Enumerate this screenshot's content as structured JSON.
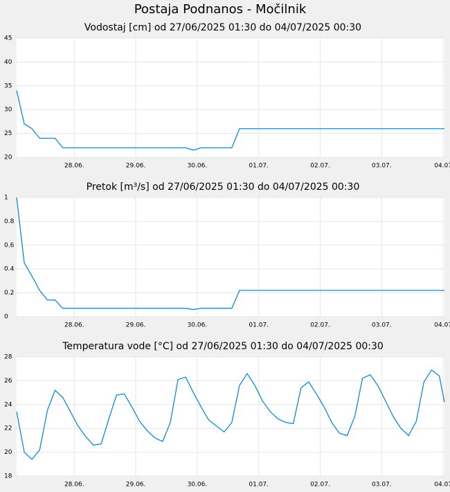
{
  "title": "Postaja Podnanos - Močilnik",
  "chart_data": [
    {
      "type": "line",
      "title": "Vodostaj [cm] od 27/06/2025 01:30 do 04/07/2025 00:30",
      "x": [
        "27.06. 01:30",
        "27.06. 04:30",
        "27.06. 07:30",
        "27.06. 10:30",
        "27.06. 13:30",
        "27.06. 16:30",
        "27.06. 19:30",
        "27.06. 22:30",
        "28.06. 01:30",
        "28.06. 04:30",
        "28.06. 07:30",
        "28.06. 10:30",
        "28.06. 13:30",
        "28.06. 16:30",
        "28.06. 19:30",
        "28.06. 22:30",
        "29.06. 01:30",
        "29.06. 04:30",
        "29.06. 07:30",
        "29.06. 10:30",
        "29.06. 13:30",
        "29.06. 16:30",
        "29.06. 19:30",
        "29.06. 22:30",
        "30.06. 01:30",
        "30.06. 04:30",
        "30.06. 07:30",
        "30.06. 10:30",
        "30.06. 13:30",
        "30.06. 16:30",
        "30.06. 19:30",
        "30.06. 22:30",
        "01.07. 01:30",
        "01.07. 04:30",
        "01.07. 07:30",
        "01.07. 10:30",
        "01.07. 13:30",
        "01.07. 16:30",
        "01.07. 19:30",
        "01.07. 22:30",
        "02.07. 01:30",
        "02.07. 04:30",
        "02.07. 07:30",
        "02.07. 10:30",
        "02.07. 13:30",
        "02.07. 16:30",
        "02.07. 19:30",
        "02.07. 22:30",
        "03.07. 01:30",
        "03.07. 04:30",
        "03.07. 07:30",
        "03.07. 10:30",
        "03.07. 13:30",
        "03.07. 16:30",
        "03.07. 19:30",
        "03.07. 22:30",
        "04.07. 00:30"
      ],
      "series": [
        {
          "color": "#0a8ad6",
          "values": [
            34,
            27,
            26,
            24,
            24,
            24,
            22,
            22,
            22,
            22,
            22,
            22,
            22,
            22,
            22,
            22,
            22,
            22,
            22,
            22,
            22,
            22,
            22,
            21.5,
            22,
            22,
            22,
            22,
            22,
            26,
            26,
            26,
            26,
            26,
            26,
            26,
            26,
            26,
            26,
            26,
            26,
            26,
            26,
            26,
            26,
            26,
            26,
            26,
            26,
            26,
            26,
            26,
            26,
            26,
            26,
            26,
            26
          ]
        }
      ],
      "xlim": [
        "27.06. 01:30",
        "04.07. 00:30"
      ],
      "xticks": [
        {
          "value": "28.06. 00:00",
          "label": "28.06."
        },
        {
          "value": "29.06. 00:00",
          "label": "29.06."
        },
        {
          "value": "30.06. 00:00",
          "label": "30.06."
        },
        {
          "value": "01.07. 00:00",
          "label": "01.07."
        },
        {
          "value": "02.07. 00:00",
          "label": "02.07."
        },
        {
          "value": "03.07. 00:00",
          "label": "03.07."
        },
        {
          "value": "04.07. 00:00",
          "label": "04.07"
        }
      ],
      "ylim": [
        20,
        45
      ],
      "yticks": [
        20,
        25,
        30,
        35,
        40,
        45
      ],
      "grid": true
    },
    {
      "type": "line",
      "title": "Pretok [m³/s] od 27/06/2025 01:30 do 04/07/2025 00:30",
      "x": [
        "27.06. 01:30",
        "27.06. 04:30",
        "27.06. 07:30",
        "27.06. 10:30",
        "27.06. 13:30",
        "27.06. 16:30",
        "27.06. 19:30",
        "27.06. 22:30",
        "28.06. 01:30",
        "28.06. 04:30",
        "28.06. 07:30",
        "28.06. 10:30",
        "28.06. 13:30",
        "28.06. 16:30",
        "28.06. 19:30",
        "28.06. 22:30",
        "29.06. 01:30",
        "29.06. 04:30",
        "29.06. 07:30",
        "29.06. 10:30",
        "29.06. 13:30",
        "29.06. 16:30",
        "29.06. 19:30",
        "29.06. 22:30",
        "30.06. 01:30",
        "30.06. 04:30",
        "30.06. 07:30",
        "30.06. 10:30",
        "30.06. 13:30",
        "30.06. 16:30",
        "30.06. 19:30",
        "30.06. 22:30",
        "01.07. 01:30",
        "01.07. 04:30",
        "01.07. 07:30",
        "01.07. 10:30",
        "01.07. 13:30",
        "01.07. 16:30",
        "01.07. 19:30",
        "01.07. 22:30",
        "02.07. 01:30",
        "02.07. 04:30",
        "02.07. 07:30",
        "02.07. 10:30",
        "02.07. 13:30",
        "02.07. 16:30",
        "02.07. 19:30",
        "02.07. 22:30",
        "03.07. 01:30",
        "03.07. 04:30",
        "03.07. 07:30",
        "03.07. 10:30",
        "03.07. 13:30",
        "03.07. 16:30",
        "03.07. 19:30",
        "03.07. 22:30",
        "04.07. 00:30"
      ],
      "series": [
        {
          "color": "#0a8ad6",
          "values": [
            1,
            0.45,
            0.34,
            0.22,
            0.14,
            0.14,
            0.07,
            0.07,
            0.07,
            0.07,
            0.07,
            0.07,
            0.07,
            0.07,
            0.07,
            0.07,
            0.07,
            0.07,
            0.07,
            0.07,
            0.07,
            0.07,
            0.07,
            0.06,
            0.07,
            0.07,
            0.07,
            0.07,
            0.07,
            0.22,
            0.22,
            0.22,
            0.22,
            0.22,
            0.22,
            0.22,
            0.22,
            0.22,
            0.22,
            0.22,
            0.22,
            0.22,
            0.22,
            0.22,
            0.22,
            0.22,
            0.22,
            0.22,
            0.22,
            0.22,
            0.22,
            0.22,
            0.22,
            0.22,
            0.22,
            0.22,
            0.22
          ]
        }
      ],
      "xlim": [
        "27.06. 01:30",
        "04.07. 00:30"
      ],
      "xticks": [
        {
          "value": "28.06. 00:00",
          "label": "28.06."
        },
        {
          "value": "29.06. 00:00",
          "label": "29.06."
        },
        {
          "value": "30.06. 00:00",
          "label": "30.06."
        },
        {
          "value": "01.07. 00:00",
          "label": "01.07."
        },
        {
          "value": "02.07. 00:00",
          "label": "02.07."
        },
        {
          "value": "03.07. 00:00",
          "label": "03.07."
        },
        {
          "value": "04.07. 00:00",
          "label": "04.07"
        }
      ],
      "ylim": [
        0,
        1
      ],
      "yticks": [
        0,
        0.2,
        0.4,
        0.6,
        0.8,
        1
      ],
      "grid": true
    },
    {
      "type": "line",
      "title": "Temperatura vode [°C] od 27/06/2025 01:30 do 04/07/2025 00:30",
      "x": [
        "27.06. 01:30",
        "27.06. 04:30",
        "27.06. 07:30",
        "27.06. 10:30",
        "27.06. 13:30",
        "27.06. 16:30",
        "27.06. 19:30",
        "27.06. 22:30",
        "28.06. 01:30",
        "28.06. 04:30",
        "28.06. 07:30",
        "28.06. 10:30",
        "28.06. 13:30",
        "28.06. 16:30",
        "28.06. 19:30",
        "28.06. 22:30",
        "29.06. 01:30",
        "29.06. 04:30",
        "29.06. 07:30",
        "29.06. 10:30",
        "29.06. 13:30",
        "29.06. 16:30",
        "29.06. 19:30",
        "29.06. 22:30",
        "30.06. 01:30",
        "30.06. 04:30",
        "30.06. 07:30",
        "30.06. 10:30",
        "30.06. 13:30",
        "30.06. 16:30",
        "30.06. 19:30",
        "30.06. 22:30",
        "01.07. 01:30",
        "01.07. 04:30",
        "01.07. 07:30",
        "01.07. 10:30",
        "01.07. 13:30",
        "01.07. 16:30",
        "01.07. 19:30",
        "01.07. 22:30",
        "02.07. 01:30",
        "02.07. 04:30",
        "02.07. 07:30",
        "02.07. 10:30",
        "02.07. 13:30",
        "02.07. 16:30",
        "02.07. 19:30",
        "02.07. 22:30",
        "03.07. 01:30",
        "03.07. 04:30",
        "03.07. 07:30",
        "03.07. 10:30",
        "03.07. 13:30",
        "03.07. 16:30",
        "03.07. 19:30",
        "03.07. 22:30",
        "04.07. 00:30"
      ],
      "series": [
        {
          "color": "#0a8ad6",
          "values": [
            23.4,
            20.0,
            19.4,
            20.2,
            23.5,
            25.2,
            24.6,
            23.4,
            22.2,
            21.3,
            20.6,
            20.7,
            22.8,
            24.8,
            24.9,
            23.8,
            22.6,
            21.8,
            21.2,
            20.9,
            22.5,
            26.1,
            26.3,
            25.0,
            23.8,
            22.7,
            22.2,
            21.7,
            22.5,
            25.6,
            26.6,
            25.6,
            24.3,
            23.4,
            22.8,
            22.5,
            22.4,
            25.4,
            25.9,
            24.9,
            23.8,
            22.5,
            21.6,
            21.4,
            23.0,
            26.2,
            26.5,
            25.6,
            24.3,
            23.0,
            22.0,
            21.4,
            22.6,
            25.9,
            26.9,
            26.4,
            24.2
          ]
        }
      ],
      "xlim": [
        "27.06. 01:30",
        "04.07. 00:30"
      ],
      "xticks": [
        {
          "value": "28.06. 00:00",
          "label": "28.06."
        },
        {
          "value": "29.06. 00:00",
          "label": "29.06."
        },
        {
          "value": "30.06. 00:00",
          "label": "30.06."
        },
        {
          "value": "01.07. 00:00",
          "label": "01.07."
        },
        {
          "value": "02.07. 00:00",
          "label": "02.07."
        },
        {
          "value": "03.07. 00:00",
          "label": "03.07."
        },
        {
          "value": "04.07. 00:00",
          "label": "04.07"
        }
      ],
      "ylim": [
        18,
        28
      ],
      "yticks": [
        18,
        20,
        22,
        24,
        26,
        28
      ],
      "grid": true
    }
  ]
}
